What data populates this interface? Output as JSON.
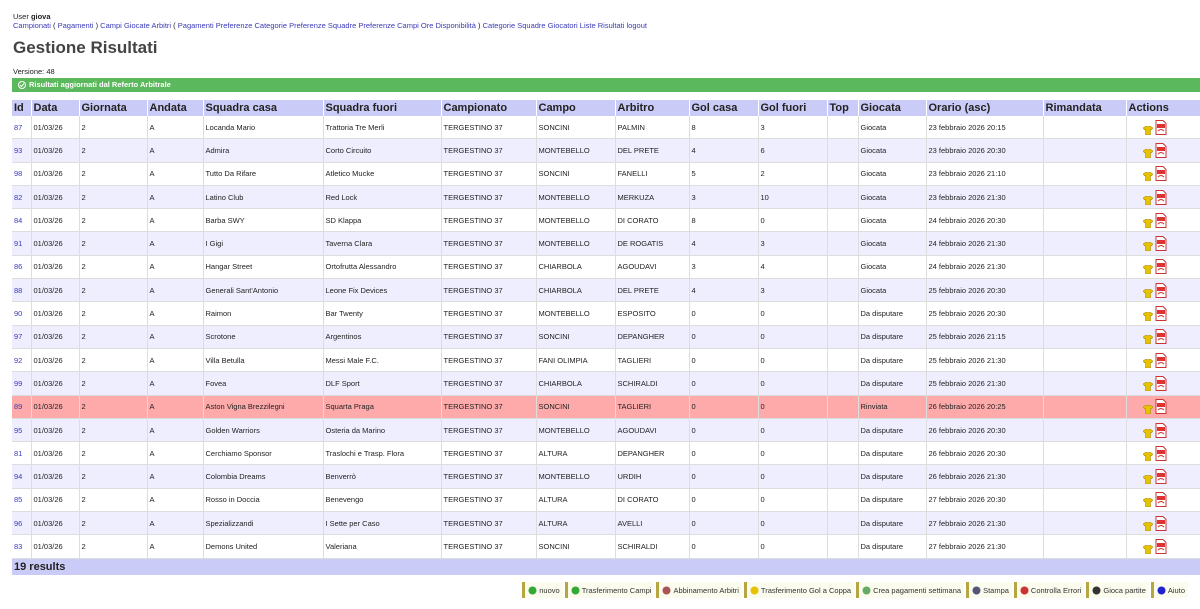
{
  "user": {
    "label": "User",
    "name": "giova"
  },
  "nav": [
    "Campionati",
    "(",
    "Pagamenti",
    ")",
    "Campi",
    "Giocate",
    "Arbitri",
    "(",
    "Pagamenti",
    "Preferenze Categorie",
    "Preferenze Squadre",
    "Preferenze Campi",
    "Ore Disponibilità",
    ")",
    "Categorie",
    "Squadre",
    "Giocatori",
    "Liste",
    "Risultati",
    "logout"
  ],
  "title": "Gestione Risultati",
  "version": "Versione: 48",
  "message": "Risultati aggiornati dal Referto Arbitrale",
  "table": {
    "headers": [
      "Id",
      "Data",
      "Giornata",
      "Andata",
      "Squadra casa",
      "Squadra fuori",
      "Campionato",
      "Campo",
      "Arbitro",
      "Gol casa",
      "Gol fuori",
      "Top",
      "Giocata",
      "Orario (asc)",
      "Rimandata",
      "Actions"
    ],
    "highlighted_rows": [
      12
    ],
    "rows": [
      [
        "87",
        "01/03/26",
        "2",
        "A",
        "Locanda Mario",
        "Trattoria Tre Merli",
        "TERGESTINO 37",
        "SONCINI",
        "PALMIN",
        "8",
        "3",
        "Giocata",
        "23 febbraio 2026 20:15"
      ],
      [
        "93",
        "01/03/26",
        "2",
        "A",
        "Admira",
        "Corto Circuito",
        "TERGESTINO 37",
        "MONTEBELLO",
        "DEL PRETE",
        "4",
        "6",
        "Giocata",
        "23 febbraio 2026 20:30"
      ],
      [
        "98",
        "01/03/26",
        "2",
        "A",
        "Tutto Da Rifare",
        "Atletico Mucke",
        "TERGESTINO 37",
        "SONCINI",
        "FANELLI",
        "5",
        "2",
        "Giocata",
        "23 febbraio 2026 21:10"
      ],
      [
        "82",
        "01/03/26",
        "2",
        "A",
        "Latino Club",
        "Red Lock",
        "TERGESTINO 37",
        "MONTEBELLO",
        "MERKUZA",
        "3",
        "10",
        "Giocata",
        "23 febbraio 2026 21:30"
      ],
      [
        "84",
        "01/03/26",
        "2",
        "A",
        "Barba SWY",
        "SD Klappa",
        "TERGESTINO 37",
        "MONTEBELLO",
        "DI CORATO",
        "8",
        "0",
        "Giocata",
        "24 febbraio 2026 20:30"
      ],
      [
        "91",
        "01/03/26",
        "2",
        "A",
        "I Gigi",
        "Taverna Clara",
        "TERGESTINO 37",
        "MONTEBELLO",
        "DE ROGATIS",
        "4",
        "3",
        "Giocata",
        "24 febbraio 2026 21:30"
      ],
      [
        "86",
        "01/03/26",
        "2",
        "A",
        "Hangar Street",
        "Ortofrutta Alessandro",
        "TERGESTINO 37",
        "CHIARBOLA",
        "AGOUDAVI",
        "3",
        "4",
        "Giocata",
        "24 febbraio 2026 21:30"
      ],
      [
        "88",
        "01/03/26",
        "2",
        "A",
        "Generali Sant'Antonio",
        "Leone Fix Devices",
        "TERGESTINO 37",
        "CHIARBOLA",
        "DEL PRETE",
        "4",
        "3",
        "Giocata",
        "25 febbraio 2026 20:30"
      ],
      [
        "90",
        "01/03/26",
        "2",
        "A",
        "Raimon",
        "Bar Twenty",
        "TERGESTINO 37",
        "MONTEBELLO",
        "ESPOSITO",
        "0",
        "0",
        "Da disputare",
        "25 febbraio 2026 20:30"
      ],
      [
        "97",
        "01/03/26",
        "2",
        "A",
        "Scrotone",
        "Argentinos",
        "TERGESTINO 37",
        "SONCINI",
        "DEPANGHER",
        "0",
        "0",
        "Da disputare",
        "25 febbraio 2026 21:15"
      ],
      [
        "92",
        "01/03/26",
        "2",
        "A",
        "Villa Betulla",
        "Messi Male F.C.",
        "TERGESTINO 37",
        "FANI OLIMPIA",
        "TAGLIERI",
        "0",
        "0",
        "Da disputare",
        "25 febbraio 2026 21:30"
      ],
      [
        "99",
        "01/03/26",
        "2",
        "A",
        "Fovea",
        "DLF Sport",
        "TERGESTINO 37",
        "CHIARBOLA",
        "SCHIRALDI",
        "0",
        "0",
        "Da disputare",
        "25 febbraio 2026 21:30"
      ],
      [
        "89",
        "01/03/26",
        "2",
        "A",
        "Aston Vigna Brezzilegni",
        "Squarta Praga",
        "TERGESTINO 37",
        "SONCINI",
        "TAGLIERI",
        "0",
        "0",
        "Rinviata",
        "26 febbraio 2026 20:25"
      ],
      [
        "95",
        "01/03/26",
        "2",
        "A",
        "Golden Warriors",
        "Osteria da Marino",
        "TERGESTINO 37",
        "MONTEBELLO",
        "AGOUDAVI",
        "0",
        "0",
        "Da disputare",
        "26 febbraio 2026 20:30"
      ],
      [
        "81",
        "01/03/26",
        "2",
        "A",
        "Cerchiamo Sponsor",
        "Traslochi e Trasp. Flora",
        "TERGESTINO 37",
        "ALTURA",
        "DEPANGHER",
        "0",
        "0",
        "Da disputare",
        "26 febbraio 2026 20:30"
      ],
      [
        "94",
        "01/03/26",
        "2",
        "A",
        "Colombia Dreams",
        "Benverrò",
        "TERGESTINO 37",
        "MONTEBELLO",
        "URDIH",
        "0",
        "0",
        "Da disputare",
        "26 febbraio 2026 21:30"
      ],
      [
        "85",
        "01/03/26",
        "2",
        "A",
        "Rosso in Doccia",
        "Benevengo",
        "TERGESTINO 37",
        "ALTURA",
        "DI CORATO",
        "0",
        "0",
        "Da disputare",
        "27 febbraio 2026 20:30"
      ],
      [
        "96",
        "01/03/26",
        "2",
        "A",
        "Spezializzandi",
        "I Sette per Caso",
        "TERGESTINO 37",
        "ALTURA",
        "AVELLI",
        "0",
        "0",
        "Da disputare",
        "27 febbraio 2026 21:30"
      ],
      [
        "83",
        "01/03/26",
        "2",
        "A",
        "Demons United",
        "Valeriana",
        "TERGESTINO 37",
        "SONCINI",
        "SCHIRALDI",
        "0",
        "0",
        "Da disputare",
        "27 febbraio 2026 21:30"
      ]
    ],
    "footer": "19 results"
  },
  "buttons": [
    "nuovo",
    "Trasferimento Campi",
    "Abbinamento Arbitri",
    "Trasferimento Gol a Coppa",
    "Crea pagamenti settimana",
    "Stampa",
    "Controlla Errori",
    "Gioca partite",
    "Aiuto"
  ]
}
